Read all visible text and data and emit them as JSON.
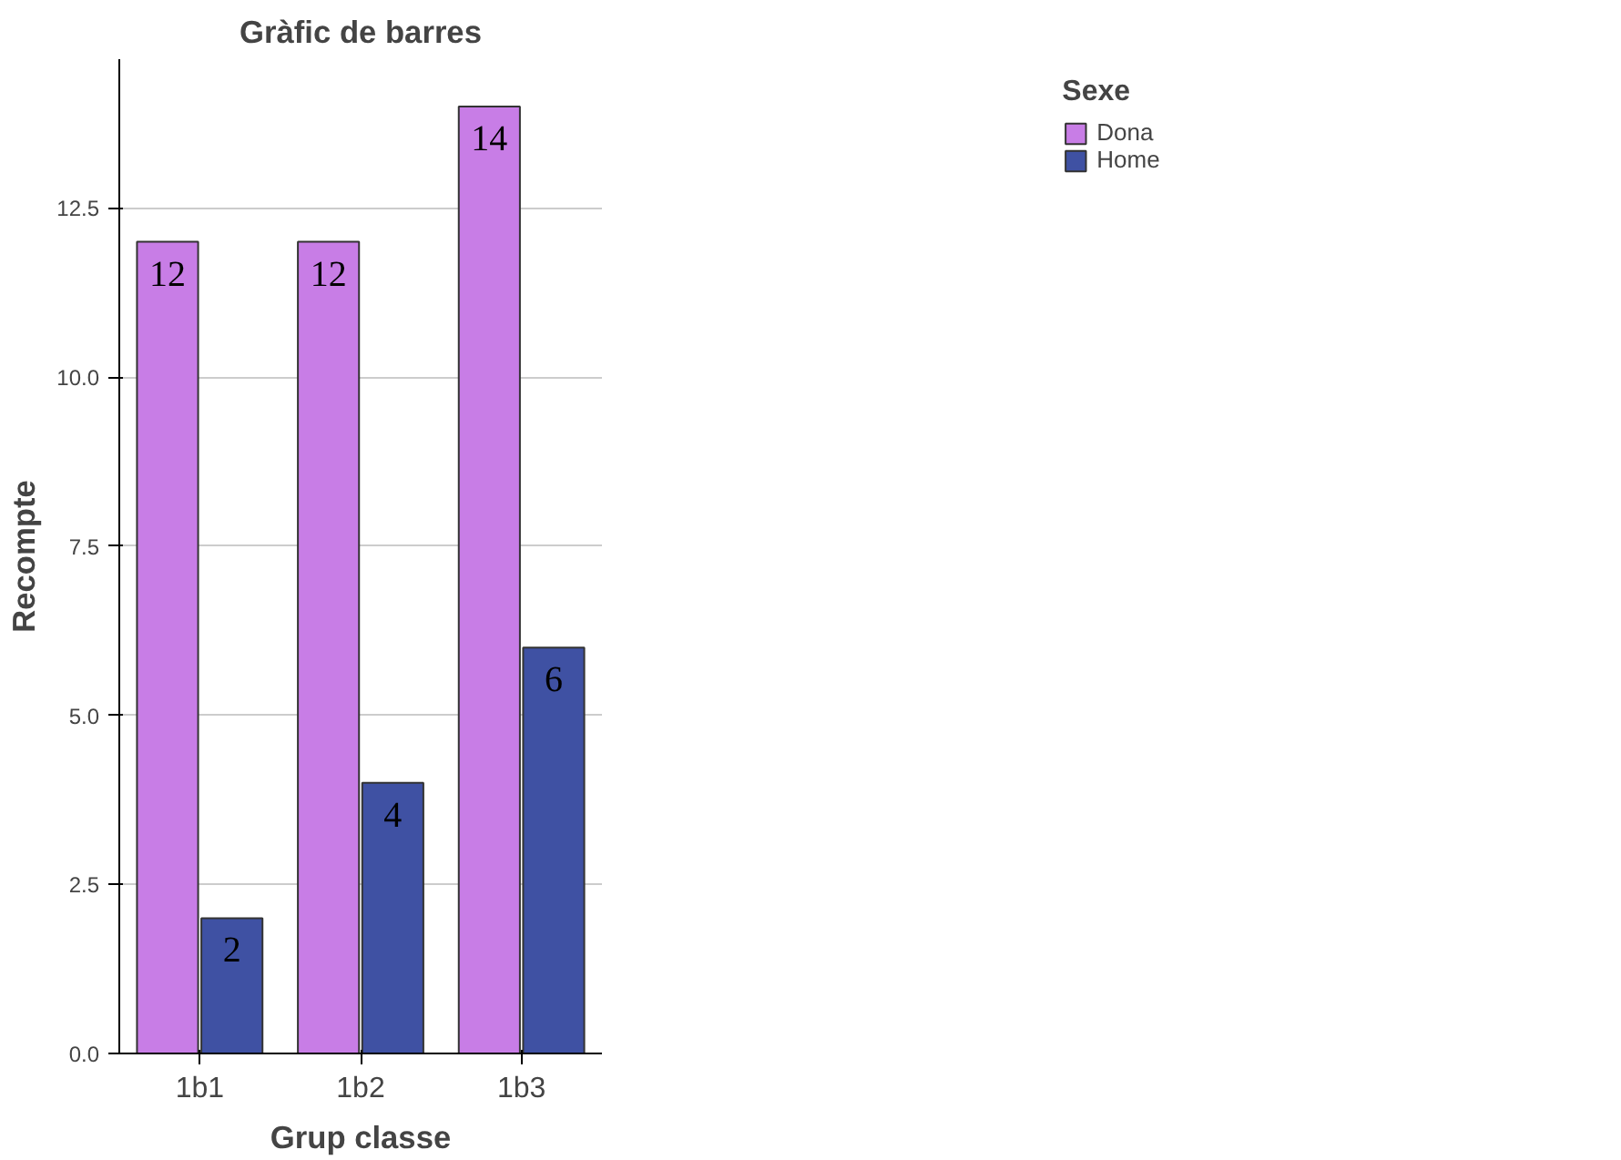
{
  "chart_data": {
    "type": "bar",
    "title": "Gràfic de barres",
    "xlabel": "Grup classe",
    "ylabel": "Recompte",
    "legend_title": "Sexe",
    "categories": [
      "1b1",
      "1b2",
      "1b3"
    ],
    "series": [
      {
        "name": "Dona",
        "color": "#c87de6",
        "values": [
          12,
          12,
          14
        ]
      },
      {
        "name": "Home",
        "color": "#3f51a3",
        "values": [
          2,
          4,
          6
        ]
      }
    ],
    "ylim": [
      0,
      14.7
    ],
    "yticks": [
      {
        "value": 0,
        "label": "0.0"
      },
      {
        "value": 2.5,
        "label": "2.5"
      },
      {
        "value": 5,
        "label": "5.0"
      },
      {
        "value": 7.5,
        "label": "7.5"
      },
      {
        "value": 10,
        "label": "10.0"
      },
      {
        "value": 12.5,
        "label": "12.5"
      }
    ],
    "grid": "y",
    "legend": "top right",
    "data_labels": true
  }
}
